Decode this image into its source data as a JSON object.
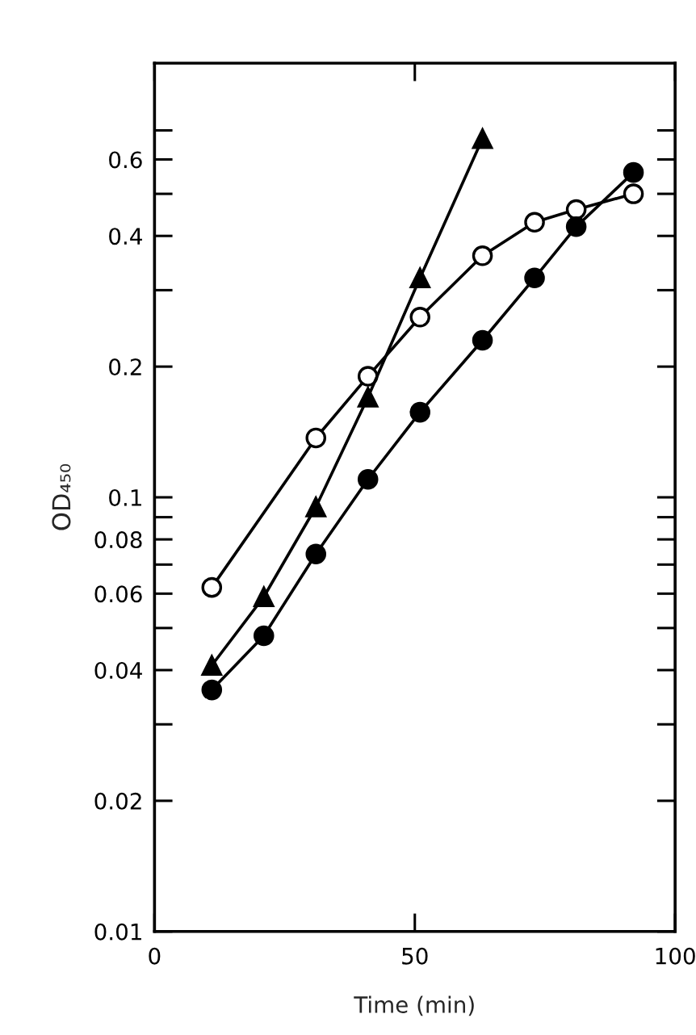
{
  "chart_data": {
    "type": "line",
    "xlabel": "Time (min)",
    "ylabel": "OD₄₅₀",
    "log": "y",
    "xlim": [
      0,
      100
    ],
    "xticks": [
      0,
      50,
      100
    ],
    "ylim": [
      0.01,
      1
    ],
    "yticks": [
      0.01,
      0.02,
      {
        "value": 0.03,
        "label": null
      },
      0.04,
      {
        "value": 0.05,
        "label": null
      },
      0.06,
      {
        "value": 0.07,
        "label": null
      },
      0.08,
      {
        "value": 0.09,
        "label": null
      },
      0.1,
      0.2,
      {
        "value": 0.3,
        "label": null
      },
      0.4,
      {
        "value": 0.5,
        "label": null
      },
      0.6,
      {
        "value": 0.7,
        "label": null
      }
    ],
    "line_style": "solid",
    "series": [
      {
        "color": "#000000",
        "marker": "circle-open",
        "x": [
          11,
          31,
          41,
          51,
          63,
          73,
          81,
          92
        ],
        "values": [
          0.062,
          0.137,
          0.19,
          0.26,
          0.36,
          0.43,
          0.46,
          0.5
        ]
      },
      {
        "color": "#000000",
        "marker": "triangle",
        "x": [
          11,
          21,
          31,
          41,
          51,
          63
        ],
        "values": [
          0.041,
          0.059,
          0.095,
          0.17,
          0.32,
          0.67
        ]
      },
      {
        "color": "#000000",
        "marker": "circle",
        "x": [
          11,
          21,
          31,
          41,
          51,
          63,
          73,
          81,
          92
        ],
        "values": [
          0.036,
          0.048,
          0.074,
          0.11,
          0.157,
          0.23,
          0.32,
          0.42,
          0.56
        ]
      }
    ]
  }
}
